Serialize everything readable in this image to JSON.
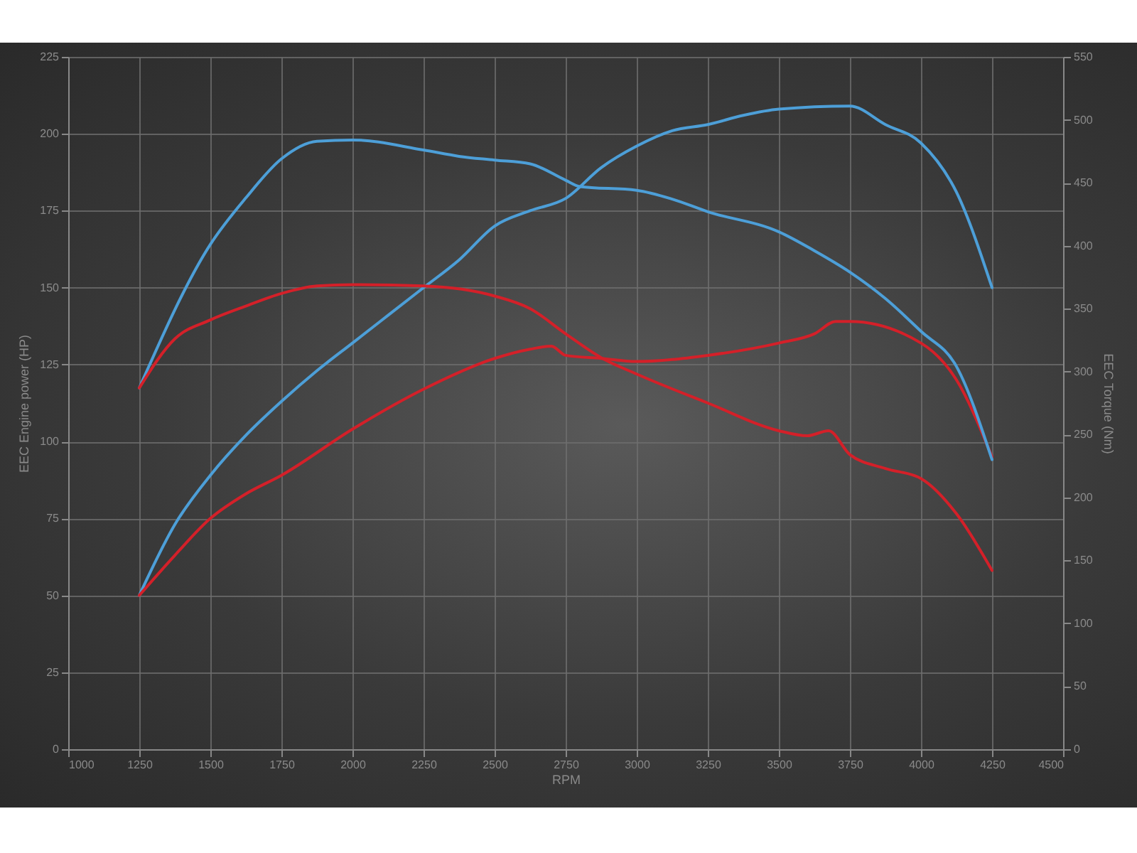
{
  "chart_data": {
    "type": "line",
    "xlabel": "RPM",
    "ylabel": "EEC Engine power (HP)",
    "y2label": "EEC Torque (Nm)",
    "xlim": [
      1000,
      4500
    ],
    "xticks": [
      1000,
      1250,
      1500,
      1750,
      2000,
      2250,
      2500,
      2750,
      3000,
      3250,
      3500,
      3750,
      4000,
      4250,
      4500
    ],
    "ylim": [
      0,
      225
    ],
    "yticks": [
      0,
      25,
      50,
      75,
      100,
      125,
      150,
      175,
      200,
      225
    ],
    "y2lim": [
      0,
      550
    ],
    "y2ticks": [
      0,
      50,
      100,
      150,
      200,
      250,
      300,
      350,
      400,
      450,
      500,
      550
    ],
    "grid": true,
    "marker": "none",
    "line_style": "solid",
    "series": [
      {
        "color": "#4d9fd8",
        "x": [
          1250,
          1375,
          1500,
          1625,
          1750,
          1875,
          2000,
          2125,
          2250,
          2375,
          2500,
          2625,
          2750,
          2875,
          3000,
          3125,
          3250,
          3375,
          3500,
          3750,
          3875,
          4000,
          4125,
          4250
        ],
        "values": [
          50,
          73,
          89,
          102,
          113,
          123,
          132,
          141,
          150,
          159,
          170,
          175,
          179,
          189,
          196,
          201,
          203,
          206,
          208,
          209,
          203,
          197,
          181,
          150
        ]
      },
      {
        "color": "#d42029",
        "x": [
          1250,
          1375,
          1500,
          1625,
          1750,
          2000,
          2250,
          2500,
          2625,
          2700,
          2750,
          2875,
          3000,
          3250,
          3500,
          3625,
          3700,
          3750,
          4000,
          4125,
          4250
        ],
        "values": [
          50,
          63,
          75,
          83,
          89,
          104,
          117,
          127,
          130,
          131,
          128,
          127,
          126,
          128,
          132,
          135,
          139,
          139,
          132,
          120,
          95
        ]
      },
      {
        "color": "#4d9fd8",
        "axis": "y2",
        "x": [
          1250,
          1500,
          1625,
          1750,
          1875,
          2000,
          2250,
          2375,
          2500,
          2625,
          2750,
          2800,
          3000,
          3125,
          3250,
          3500,
          3625,
          3750,
          3875,
          4000,
          4125,
          4250
        ],
        "values": [
          287,
          401,
          438,
          469,
          483,
          484,
          476,
          471,
          468,
          465,
          452,
          447,
          444,
          437,
          427,
          411,
          396,
          379,
          358,
          332,
          304,
          230
        ]
      },
      {
        "color": "#d42029",
        "axis": "y2",
        "x": [
          1250,
          1375,
          1500,
          1625,
          1750,
          1875,
          2000,
          2250,
          2500,
          2625,
          2750,
          2875,
          3000,
          3250,
          3500,
          3600,
          3675,
          3750,
          3875,
          4000,
          4125,
          4250
        ],
        "values": [
          287,
          326,
          341,
          352,
          362,
          368,
          369,
          368,
          360,
          350,
          330,
          311,
          298,
          275,
          253,
          249,
          253,
          234,
          223,
          215,
          187,
          142
        ]
      }
    ]
  }
}
